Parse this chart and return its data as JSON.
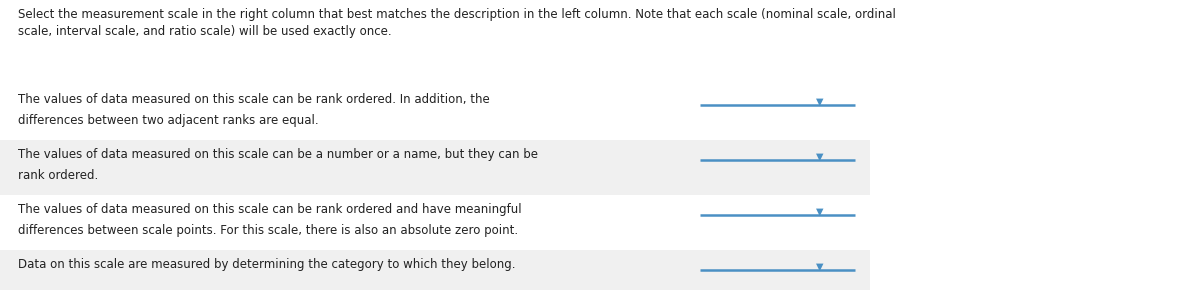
{
  "header_line1": "Select the measurement scale in the right column that best matches the description in the left column. Note that each scale (nominal scale, ordinal",
  "header_line2": "scale, interval scale, and ratio scale) will be used exactly once.",
  "rows": [
    {
      "text": "The values of data measured on this scale can be rank ordered. In addition, the\ndifferences between two adjacent ranks are equal.",
      "bg_color": "#ffffff",
      "two_lines": true
    },
    {
      "text": "The values of data measured on this scale can be a number or a name, but they can be\nrank ordered.",
      "bg_color": "#f0f0f0",
      "two_lines": true
    },
    {
      "text": "The values of data measured on this scale can be rank ordered and have meaningful\ndifferences between scale points. For this scale, there is also an absolute zero point.",
      "bg_color": "#ffffff",
      "two_lines": true
    },
    {
      "text": "Data on this scale are measured by determining the category to which they belong.",
      "bg_color": "#f0f0f0",
      "two_lines": false
    }
  ],
  "dropdown_line_color": "#4a90c4",
  "dropdown_arrow_color": "#4a90c4",
  "text_color": "#222222",
  "header_color": "#222222",
  "font_size": 8.5,
  "header_font_size": 8.5,
  "fig_bg": "#ffffff"
}
